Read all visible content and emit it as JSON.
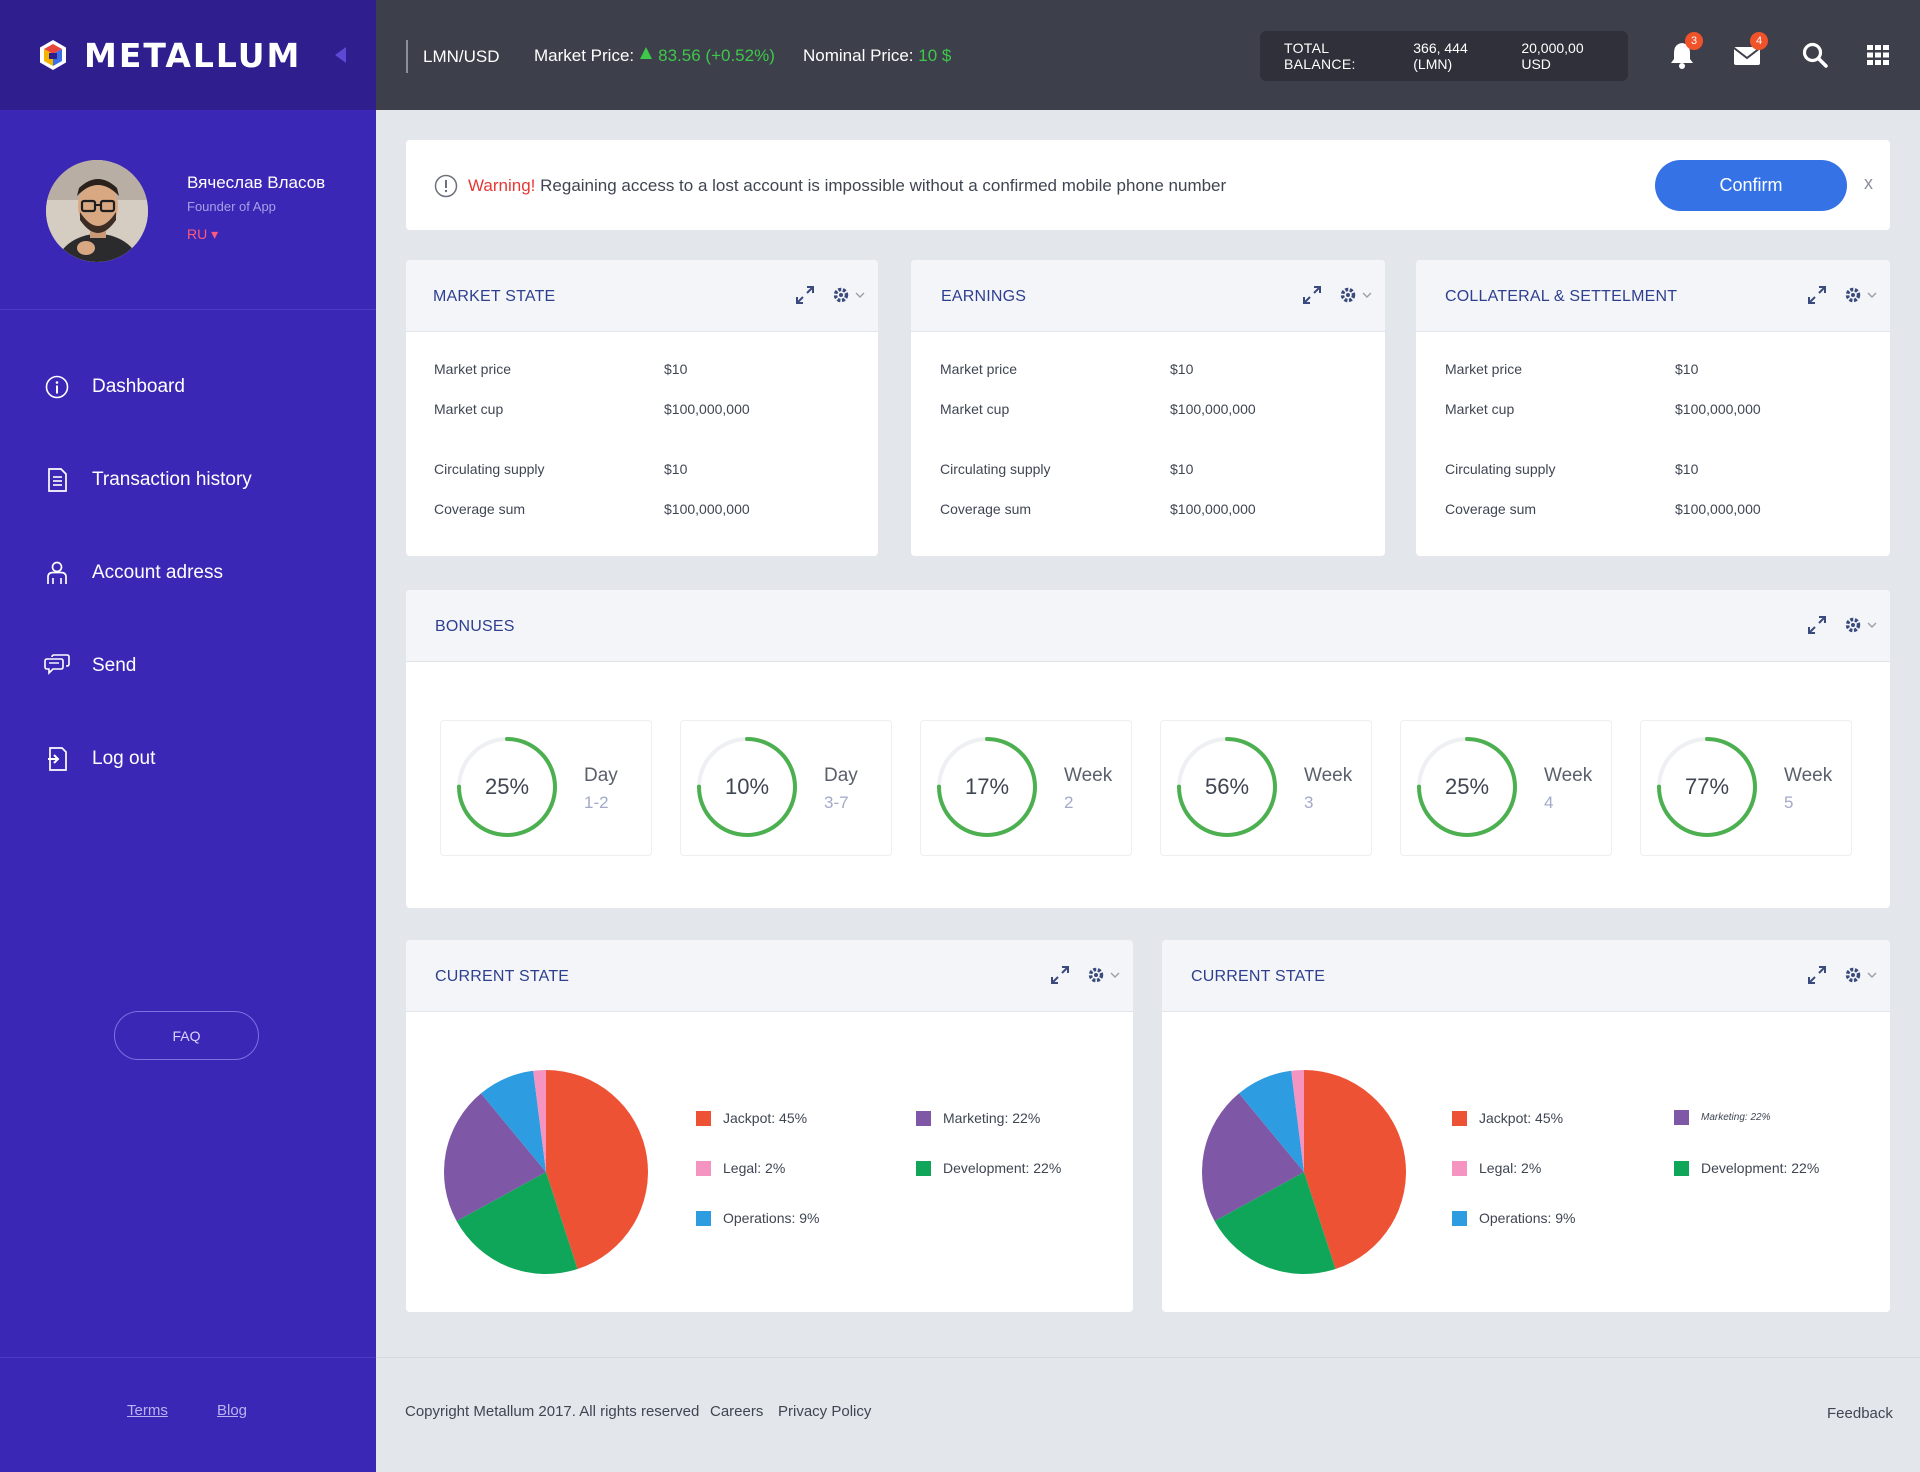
{
  "app": {
    "brand_name": "METALLUM"
  },
  "user": {
    "name": "Вячеслав Власов",
    "role": "Founder of App",
    "language": "RU ▾"
  },
  "sidebar": {
    "items": [
      {
        "label": "Dashboard",
        "icon": "info-icon"
      },
      {
        "label": "Transaction history",
        "icon": "document-icon"
      },
      {
        "label": "Account adress",
        "icon": "user-icon"
      },
      {
        "label": "Send",
        "icon": "chat-icon"
      },
      {
        "label": "Log out",
        "icon": "logout-icon"
      }
    ],
    "faq_label": "FAQ",
    "terms_label": "Terms",
    "blog_label": "Blog"
  },
  "topbar": {
    "pair": "LMN/USD",
    "market_price_label": "Market Price:",
    "market_price_value": "83.56 (+0.52%)",
    "nominal_label": "Nominal Price:",
    "nominal_value": "10 $",
    "balance_label": "TOTAL BALANCE:",
    "balance_lmn": "366, 444 (LMN)",
    "balance_usd": "20,000,00 USD",
    "notifications_count": "3",
    "messages_count": "4"
  },
  "alert": {
    "warning_label": "Warning!",
    "message": "Regaining access to a lost account is impossible without a confirmed mobile phone number",
    "confirm_label": "Confirm",
    "close_label": "x"
  },
  "panels": [
    {
      "title": "MARKET STATE",
      "rows": [
        {
          "label": "Market price",
          "value": "$10"
        },
        {
          "label": "Market cup",
          "value": "$100,000,000"
        },
        {
          "label": "Circulating supply",
          "value": "$10"
        },
        {
          "label": "Coverage sum",
          "value": "$100,000,000"
        }
      ]
    },
    {
      "title": "EARNINGS",
      "rows": [
        {
          "label": "Market price",
          "value": "$10"
        },
        {
          "label": "Market cup",
          "value": "$100,000,000"
        },
        {
          "label": "Circulating supply",
          "value": "$10"
        },
        {
          "label": "Coverage sum",
          "value": "$100,000,000"
        }
      ]
    },
    {
      "title": "COLLATERAL & SETTELMENT",
      "rows": [
        {
          "label": "Market price",
          "value": "$10"
        },
        {
          "label": "Market cup",
          "value": "$100,000,000"
        },
        {
          "label": "Circulating supply",
          "value": "$10"
        },
        {
          "label": "Coverage sum",
          "value": "$100,000,000"
        }
      ]
    }
  ],
  "bonuses": {
    "title": "BONUSES",
    "ring_color": "#4caf50",
    "items": [
      {
        "percent_label": "25%",
        "period": "Day",
        "range": "1-2",
        "fill": 0.75
      },
      {
        "percent_label": "10%",
        "period": "Day",
        "range": "3-7",
        "fill": 0.75
      },
      {
        "percent_label": "17%",
        "period": "Week",
        "range": "2",
        "fill": 0.75
      },
      {
        "percent_label": "56%",
        "period": "Week",
        "range": "3",
        "fill": 0.75
      },
      {
        "percent_label": "25%",
        "period": "Week",
        "range": "4",
        "fill": 0.75
      },
      {
        "percent_label": "77%",
        "period": "Week",
        "range": "5",
        "fill": 0.75
      }
    ]
  },
  "chart_data": [
    {
      "type": "pie",
      "title": "CURRENT STATE",
      "slices": [
        {
          "label": "Jackpot: 45%",
          "value": 45,
          "color": "#ee5235"
        },
        {
          "label": "Development: 22%",
          "value": 22,
          "color": "#0fa65a"
        },
        {
          "label": "Marketing: 22%",
          "value": 22,
          "color": "#7e57a6"
        },
        {
          "label": "Operations: 9%",
          "value": 9,
          "color": "#2e9ce0"
        },
        {
          "label": "Legal: 2%",
          "value": 2,
          "color": "#f594c1"
        }
      ]
    },
    {
      "type": "pie",
      "title": "CURRENT STATE",
      "slices": [
        {
          "label": "Jackpot: 45%",
          "value": 45,
          "color": "#ee5235"
        },
        {
          "label": "Development: 22%",
          "value": 22,
          "color": "#0fa65a"
        },
        {
          "label": "Marketing: 22%",
          "value": 22,
          "color": "#7e57a6"
        },
        {
          "label": "Operations: 9%",
          "value": 9,
          "color": "#2e9ce0"
        },
        {
          "label": "Legal: 2%",
          "value": 2,
          "color": "#f594c1"
        }
      ]
    }
  ],
  "footer": {
    "copyright": "Copyright  Metallum 2017. All rights reserved",
    "careers": "Careers",
    "privacy": "Privacy Policy",
    "feedback": "Feedback"
  }
}
